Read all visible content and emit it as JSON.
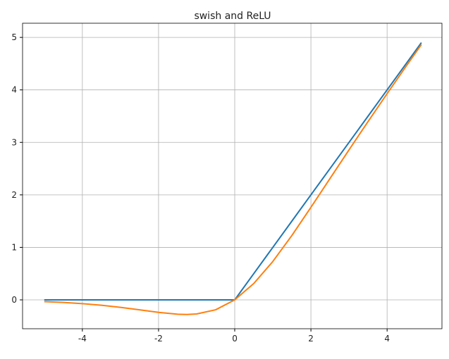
{
  "chart_data": {
    "type": "line",
    "title": "swish and ReLU",
    "x": [
      -5,
      -4.5,
      -4,
      -3.5,
      -3,
      -2.5,
      -2,
      -1.5,
      -1.25,
      -1,
      -0.5,
      0,
      0.5,
      1,
      1.5,
      2,
      2.5,
      3,
      3.5,
      4,
      4.5,
      4.9
    ],
    "series": [
      {
        "name": "ReLU",
        "color": "#1f77b4",
        "values": [
          0,
          0,
          0,
          0,
          0,
          0,
          0,
          0,
          0,
          0,
          0,
          0,
          0.5,
          1,
          1.5,
          2,
          2.5,
          3,
          3.5,
          4,
          4.5,
          4.9
        ]
      },
      {
        "name": "swish",
        "color": "#ff7f0e",
        "values": [
          -0.0335,
          -0.0494,
          -0.0719,
          -0.1026,
          -0.1423,
          -0.1896,
          -0.2384,
          -0.2736,
          -0.2784,
          -0.2689,
          -0.1888,
          0,
          0.3112,
          0.7311,
          1.2264,
          1.7616,
          2.3104,
          2.8577,
          3.3974,
          3.9281,
          4.4506,
          4.8638
        ]
      }
    ],
    "xlim": [
      -5.57,
      5.44
    ],
    "ylim": [
      -0.55,
      5.27
    ],
    "xticks": [
      -4,
      -2,
      0,
      2,
      4
    ],
    "yticks": [
      0,
      1,
      2,
      3,
      4,
      5
    ],
    "grid": true
  }
}
